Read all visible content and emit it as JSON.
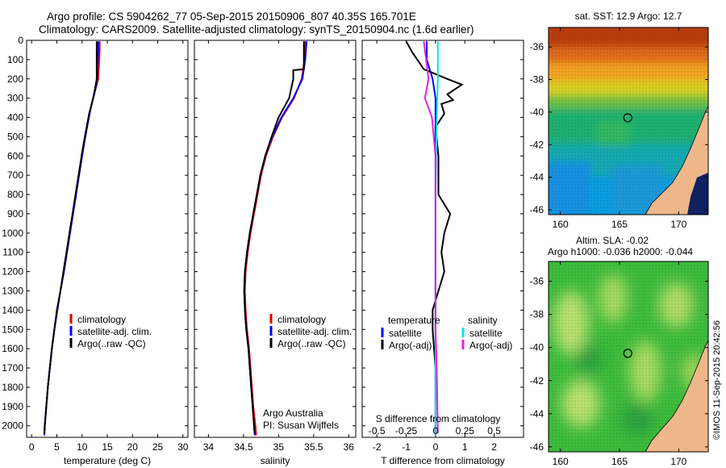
{
  "title_line1": "Argo profile: CS 5904262_77 05-Sep-2015 20150906_807 40.35S 165.701E",
  "title_line2": "Climatology: CARS2009. Satellite-adjusted climatology: synTS_20150904.nc (1.6d earlier)",
  "colors": {
    "climatology": "#e00000",
    "satellite": "#0000ff",
    "argo": "#000000",
    "satellite_s": "#00e5ee",
    "argo_s": "#e020e0"
  },
  "chart_data": [
    {
      "type": "line",
      "id": "temperature-profile",
      "xlabel": "temperature (deg C)",
      "ylabel": "",
      "xlim": [
        -1,
        31
      ],
      "ylim": [
        2060,
        0
      ],
      "xticks": [
        0,
        5,
        10,
        15,
        20,
        25,
        30
      ],
      "yticks": [
        0,
        100,
        200,
        300,
        400,
        500,
        600,
        700,
        800,
        900,
        1000,
        1100,
        1200,
        1300,
        1400,
        1500,
        1600,
        1700,
        1800,
        1900,
        2000
      ],
      "legend": [
        "climatology",
        "satellite-adj. clim.",
        "Argo(..raw -QC)"
      ],
      "series": [
        {
          "name": "climatology",
          "color": "#e00000",
          "points": [
            [
              13.5,
              5
            ],
            [
              13.5,
              50
            ],
            [
              13.4,
              100
            ],
            [
              13.3,
              150
            ],
            [
              13.2,
              200
            ],
            [
              12.6,
              260
            ],
            [
              12.0,
              320
            ],
            [
              11.5,
              380
            ],
            [
              11.0,
              450
            ],
            [
              10.5,
              520
            ],
            [
              10.0,
              600
            ],
            [
              9.4,
              700
            ],
            [
              8.8,
              800
            ],
            [
              8.2,
              900
            ],
            [
              7.6,
              1000
            ],
            [
              7.0,
              1100
            ],
            [
              6.4,
              1200
            ],
            [
              5.7,
              1300
            ],
            [
              5.1,
              1400
            ],
            [
              4.5,
              1500
            ],
            [
              4.0,
              1600
            ],
            [
              3.6,
              1700
            ],
            [
              3.2,
              1800
            ],
            [
              2.9,
              1900
            ],
            [
              2.6,
              2000
            ],
            [
              2.5,
              2050
            ]
          ]
        },
        {
          "name": "satellite-adj. clim.",
          "color": "#0000ff",
          "points": [
            [
              13.2,
              5
            ],
            [
              13.2,
              50
            ],
            [
              13.1,
              100
            ],
            [
              13.0,
              150
            ],
            [
              13.0,
              200
            ],
            [
              12.6,
              260
            ],
            [
              12.0,
              320
            ],
            [
              11.5,
              380
            ],
            [
              11.0,
              450
            ],
            [
              10.5,
              520
            ],
            [
              10.0,
              600
            ],
            [
              9.4,
              700
            ],
            [
              8.8,
              800
            ],
            [
              8.2,
              900
            ],
            [
              7.6,
              1000
            ],
            [
              7.0,
              1100
            ],
            [
              6.4,
              1200
            ],
            [
              5.7,
              1300
            ],
            [
              5.1,
              1400
            ],
            [
              4.5,
              1500
            ],
            [
              4.0,
              1600
            ],
            [
              3.6,
              1700
            ],
            [
              3.2,
              1800
            ],
            [
              2.9,
              1900
            ],
            [
              2.6,
              2000
            ],
            [
              2.5,
              2050
            ]
          ]
        },
        {
          "name": "Argo(..raw -QC)",
          "color": "#000000",
          "points": [
            [
              12.9,
              5
            ],
            [
              12.9,
              100
            ],
            [
              12.9,
              200
            ],
            [
              12.5,
              260
            ],
            [
              12.0,
              320
            ],
            [
              11.4,
              380
            ],
            [
              10.9,
              450
            ],
            [
              10.4,
              520
            ],
            [
              9.9,
              600
            ],
            [
              9.3,
              700
            ],
            [
              8.7,
              800
            ],
            [
              8.1,
              900
            ],
            [
              7.5,
              1000
            ],
            [
              6.9,
              1100
            ],
            [
              6.3,
              1200
            ],
            [
              5.7,
              1300
            ],
            [
              5.0,
              1400
            ],
            [
              4.5,
              1500
            ],
            [
              4.0,
              1600
            ],
            [
              3.6,
              1700
            ],
            [
              3.2,
              1800
            ],
            [
              2.9,
              1900
            ],
            [
              2.6,
              2000
            ],
            [
              2.5,
              2040
            ]
          ]
        }
      ]
    },
    {
      "type": "line",
      "id": "salinity-profile",
      "xlabel": "salinity",
      "xlim": [
        33.8,
        36.1
      ],
      "ylim": [
        2060,
        0
      ],
      "xticks": [
        34,
        34.5,
        35,
        35.5,
        36
      ],
      "legend": [
        "climatology",
        "satellite-adj. clim.",
        "Argo(..raw -QC)"
      ],
      "annotation": [
        "Argo Australia",
        "PI: Susan Wijffels"
      ],
      "series": [
        {
          "name": "climatology",
          "color": "#e00000",
          "points": [
            [
              35.38,
              5
            ],
            [
              35.37,
              100
            ],
            [
              35.33,
              200
            ],
            [
              35.22,
              300
            ],
            [
              35.05,
              400
            ],
            [
              34.92,
              500
            ],
            [
              34.82,
              600
            ],
            [
              34.75,
              700
            ],
            [
              34.7,
              800
            ],
            [
              34.65,
              900
            ],
            [
              34.6,
              1000
            ],
            [
              34.56,
              1100
            ],
            [
              34.53,
              1200
            ],
            [
              34.52,
              1300
            ],
            [
              34.53,
              1400
            ],
            [
              34.55,
              1500
            ],
            [
              34.58,
              1600
            ],
            [
              34.6,
              1700
            ],
            [
              34.62,
              1800
            ],
            [
              34.64,
              1900
            ],
            [
              34.67,
              2000
            ],
            [
              34.68,
              2050
            ]
          ]
        },
        {
          "name": "satellite-adj. clim.",
          "color": "#0000ff",
          "points": [
            [
              35.4,
              5
            ],
            [
              35.38,
              100
            ],
            [
              35.34,
              200
            ],
            [
              35.21,
              300
            ],
            [
              35.04,
              400
            ],
            [
              34.91,
              500
            ],
            [
              34.81,
              600
            ],
            [
              34.74,
              700
            ],
            [
              34.69,
              800
            ],
            [
              34.64,
              900
            ],
            [
              34.59,
              1000
            ],
            [
              34.55,
              1100
            ],
            [
              34.52,
              1200
            ],
            [
              34.51,
              1300
            ],
            [
              34.52,
              1400
            ],
            [
              34.54,
              1500
            ],
            [
              34.57,
              1600
            ],
            [
              34.59,
              1700
            ],
            [
              34.61,
              1800
            ],
            [
              34.63,
              1900
            ],
            [
              34.65,
              2000
            ],
            [
              34.66,
              2050
            ]
          ]
        },
        {
          "name": "Argo(..raw -QC)",
          "color": "#000000",
          "points": [
            [
              35.36,
              5
            ],
            [
              35.36,
              100
            ],
            [
              35.36,
              150
            ],
            [
              35.21,
              155
            ],
            [
              35.21,
              200
            ],
            [
              35.15,
              300
            ],
            [
              35.0,
              400
            ],
            [
              34.9,
              500
            ],
            [
              34.81,
              600
            ],
            [
              34.74,
              700
            ],
            [
              34.69,
              800
            ],
            [
              34.64,
              900
            ],
            [
              34.59,
              1000
            ],
            [
              34.55,
              1100
            ],
            [
              34.52,
              1200
            ],
            [
              34.51,
              1300
            ],
            [
              34.52,
              1400
            ],
            [
              34.54,
              1500
            ],
            [
              34.57,
              1600
            ],
            [
              34.59,
              1700
            ],
            [
              34.61,
              1800
            ],
            [
              34.63,
              1900
            ],
            [
              34.65,
              2000
            ],
            [
              34.66,
              2040
            ]
          ]
        }
      ]
    },
    {
      "type": "line",
      "id": "difference-profile",
      "xlabel": "T difference from climatology",
      "xlabel_top": "S difference from climatology",
      "xlim": [
        -2.5,
        3
      ],
      "ylim": [
        2060,
        0
      ],
      "xticks": [
        -2,
        -1,
        0,
        1,
        2
      ],
      "xticks_top": [
        "-0.5",
        "-0.25",
        "0",
        "0.25",
        "0.5"
      ],
      "legend_temperature": {
        "title": "temperature",
        "items": [
          "satellite",
          "Argo(-adj)"
        ]
      },
      "legend_salinity": {
        "title": "salinity",
        "items": [
          "satellite",
          "Argo(-adj)"
        ]
      },
      "series": [
        {
          "name": "temperature satellite",
          "color": "#0000ff",
          "points": [
            [
              -0.3,
              5
            ],
            [
              -0.3,
              100
            ],
            [
              -0.1,
              200
            ],
            [
              0,
              300
            ],
            [
              0,
              500
            ],
            [
              0,
              1000
            ],
            [
              0,
              1500
            ],
            [
              0,
              2050
            ]
          ]
        },
        {
          "name": "temperature Argo(-adj)",
          "color": "#000000",
          "points": [
            [
              -1.0,
              5
            ],
            [
              -0.8,
              60
            ],
            [
              -0.4,
              150
            ],
            [
              0.4,
              200
            ],
            [
              0.9,
              230
            ],
            [
              0.4,
              280
            ],
            [
              0.6,
              310
            ],
            [
              0.2,
              330
            ],
            [
              0.3,
              380
            ],
            [
              0,
              450
            ],
            [
              0.1,
              600
            ],
            [
              0.1,
              800
            ],
            [
              0.5,
              900
            ],
            [
              0.3,
              1000
            ],
            [
              0.2,
              1100
            ],
            [
              0.3,
              1200
            ],
            [
              0.1,
              1300
            ],
            [
              -0.1,
              1400
            ],
            [
              -0.1,
              1500
            ],
            [
              0,
              1700
            ],
            [
              0,
              2040
            ]
          ]
        },
        {
          "name": "salinity satellite",
          "color": "#00e5ee",
          "points": [
            [
              0.02,
              5
            ],
            [
              0.02,
              200
            ],
            [
              0.01,
              400
            ],
            [
              0,
              800
            ],
            [
              0,
              1200
            ],
            [
              0,
              1600
            ],
            [
              0,
              2050
            ]
          ]
        },
        {
          "name": "salinity Argo(-adj)",
          "color": "#e020e0",
          "points": [
            [
              -0.1,
              5
            ],
            [
              -0.08,
              100
            ],
            [
              -0.06,
              200
            ],
            [
              -0.09,
              300
            ],
            [
              -0.03,
              400
            ],
            [
              0,
              600
            ],
            [
              0,
              1000
            ],
            [
              0,
              1500
            ],
            [
              0.01,
              1700
            ],
            [
              0.02,
              2040
            ]
          ]
        }
      ]
    },
    {
      "type": "heatmap",
      "id": "sst-map",
      "title": "sat. SST: 12.9  Argo: 12.7",
      "xlim": [
        159,
        172.5
      ],
      "ylim": [
        -46.3,
        -34.8
      ],
      "xticks": [
        160,
        165,
        170
      ],
      "yticks": [
        -36,
        -38,
        -40,
        -42,
        -44,
        -46
      ],
      "marker": {
        "lon": 165.7,
        "lat": -40.35
      }
    },
    {
      "type": "heatmap",
      "id": "sla-map",
      "title_line1": "Altim. SLA: -0.02",
      "title_line2": "Argo h1000: -0.036  h2000: -0.044",
      "xlim": [
        159,
        172.5
      ],
      "ylim": [
        -46.3,
        -34.8
      ],
      "xticks": [
        160,
        165,
        170
      ],
      "yticks": [
        -36,
        -38,
        -40,
        -42,
        -44,
        -46
      ],
      "marker": {
        "lon": 165.7,
        "lat": -40.35
      }
    }
  ],
  "watermark": "©IMOS 11-Sep-2015 20:42:56"
}
